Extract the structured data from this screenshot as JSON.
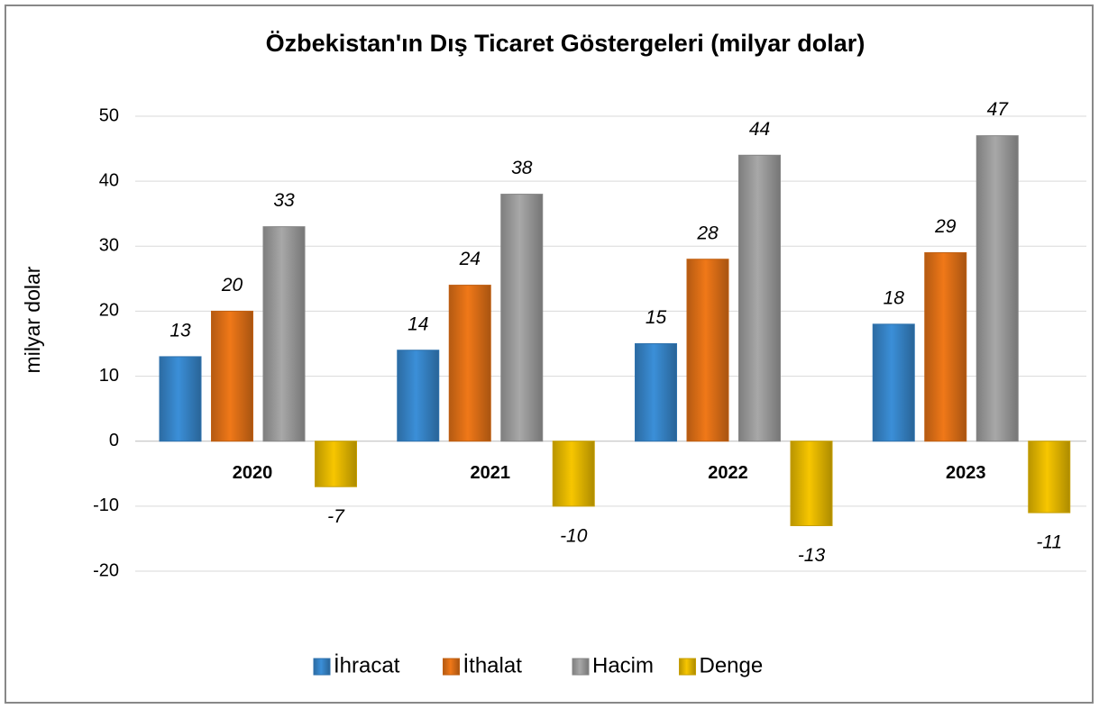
{
  "chart_data": {
    "type": "bar",
    "title": "Özbekistan'ın Dış Ticaret Göstergeleri (milyar dolar)",
    "y_label": "milyar dolar",
    "categories": [
      "2020",
      "2021",
      "2022",
      "2023"
    ],
    "series": [
      {
        "name": "İhracat",
        "color": "#3b8fd8",
        "values": [
          13,
          14,
          15,
          18
        ]
      },
      {
        "name": "İthalat",
        "color": "#f07818",
        "values": [
          20,
          24,
          28,
          29
        ]
      },
      {
        "name": "Hacim",
        "color": "#a8a8a8",
        "values": [
          33,
          38,
          44,
          47
        ]
      },
      {
        "name": "Denge",
        "color": "#f7c600",
        "values": [
          -7,
          -10,
          -13,
          -11
        ]
      }
    ],
    "ylim": [
      -20,
      50
    ],
    "yticks": [
      -20,
      -10,
      0,
      10,
      20,
      30,
      40,
      50
    ],
    "grid": true,
    "legend": "bottom"
  }
}
